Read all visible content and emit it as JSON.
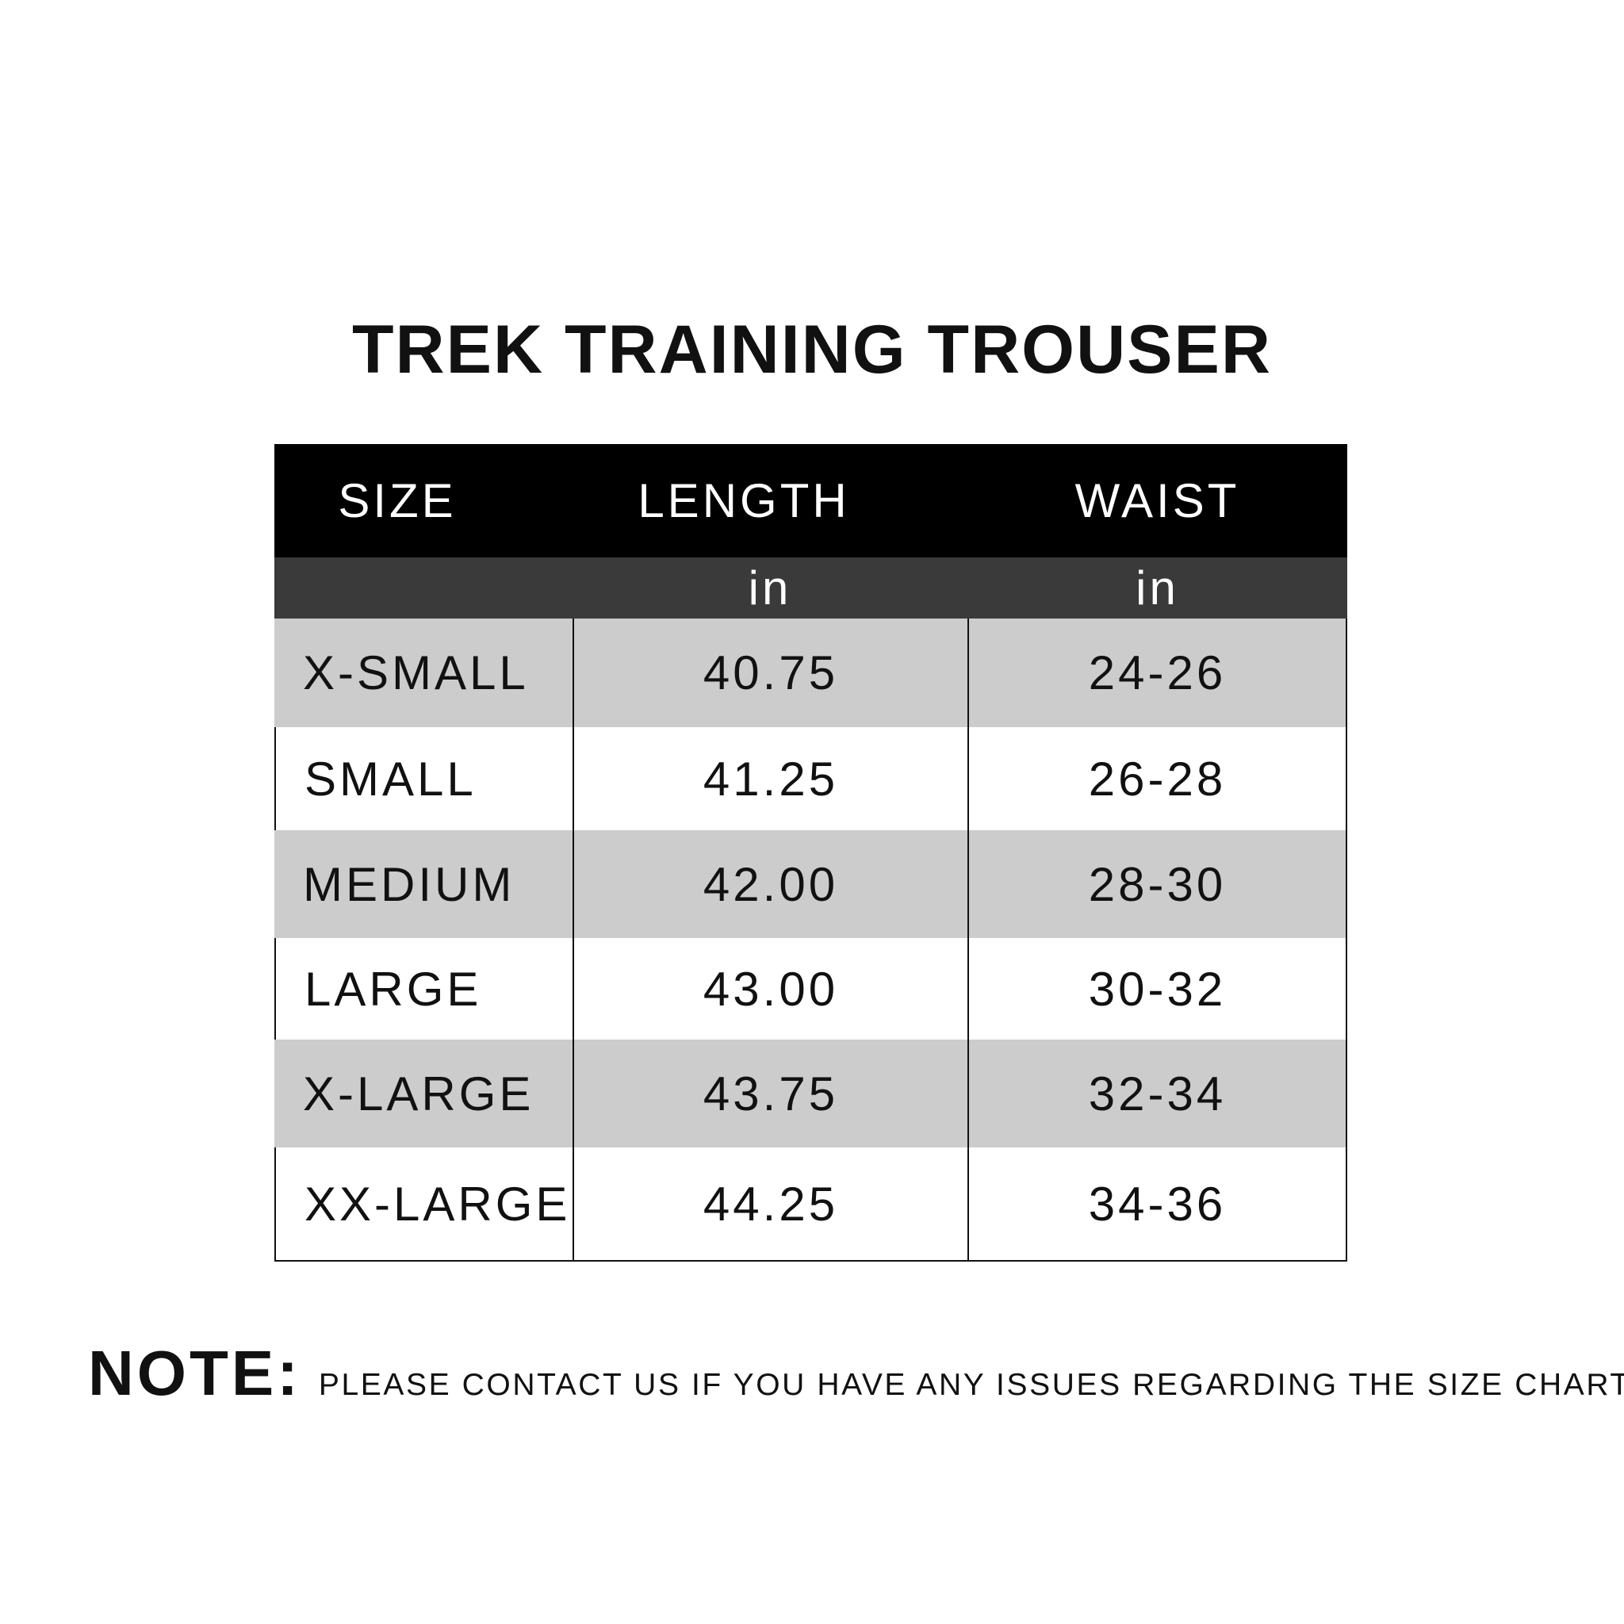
{
  "title": "TREK TRAINING TROUSER",
  "table": {
    "headers": [
      "SIZE",
      "LENGTH",
      "WAIST"
    ],
    "units": [
      "",
      "in",
      "in"
    ],
    "rows": [
      [
        "X-SMALL",
        "40.75",
        "24-26"
      ],
      [
        "SMALL",
        "41.25",
        "26-28"
      ],
      [
        "MEDIUM",
        "42.00",
        "28-30"
      ],
      [
        "LARGE",
        "43.00",
        "30-32"
      ],
      [
        "X-LARGE",
        "43.75",
        "32-34"
      ],
      [
        "XX-LARGE",
        "44.25",
        "34-36"
      ]
    ]
  },
  "note": {
    "label": "NOTE:",
    "text": "PLEASE CONTACT US IF YOU HAVE ANY ISSUES REGARDING THE SIZE CHART"
  },
  "colors": {
    "header_bg": "#000000",
    "unit_row_bg": "#3a3a3a",
    "stripe_bg": "#cccccc"
  }
}
